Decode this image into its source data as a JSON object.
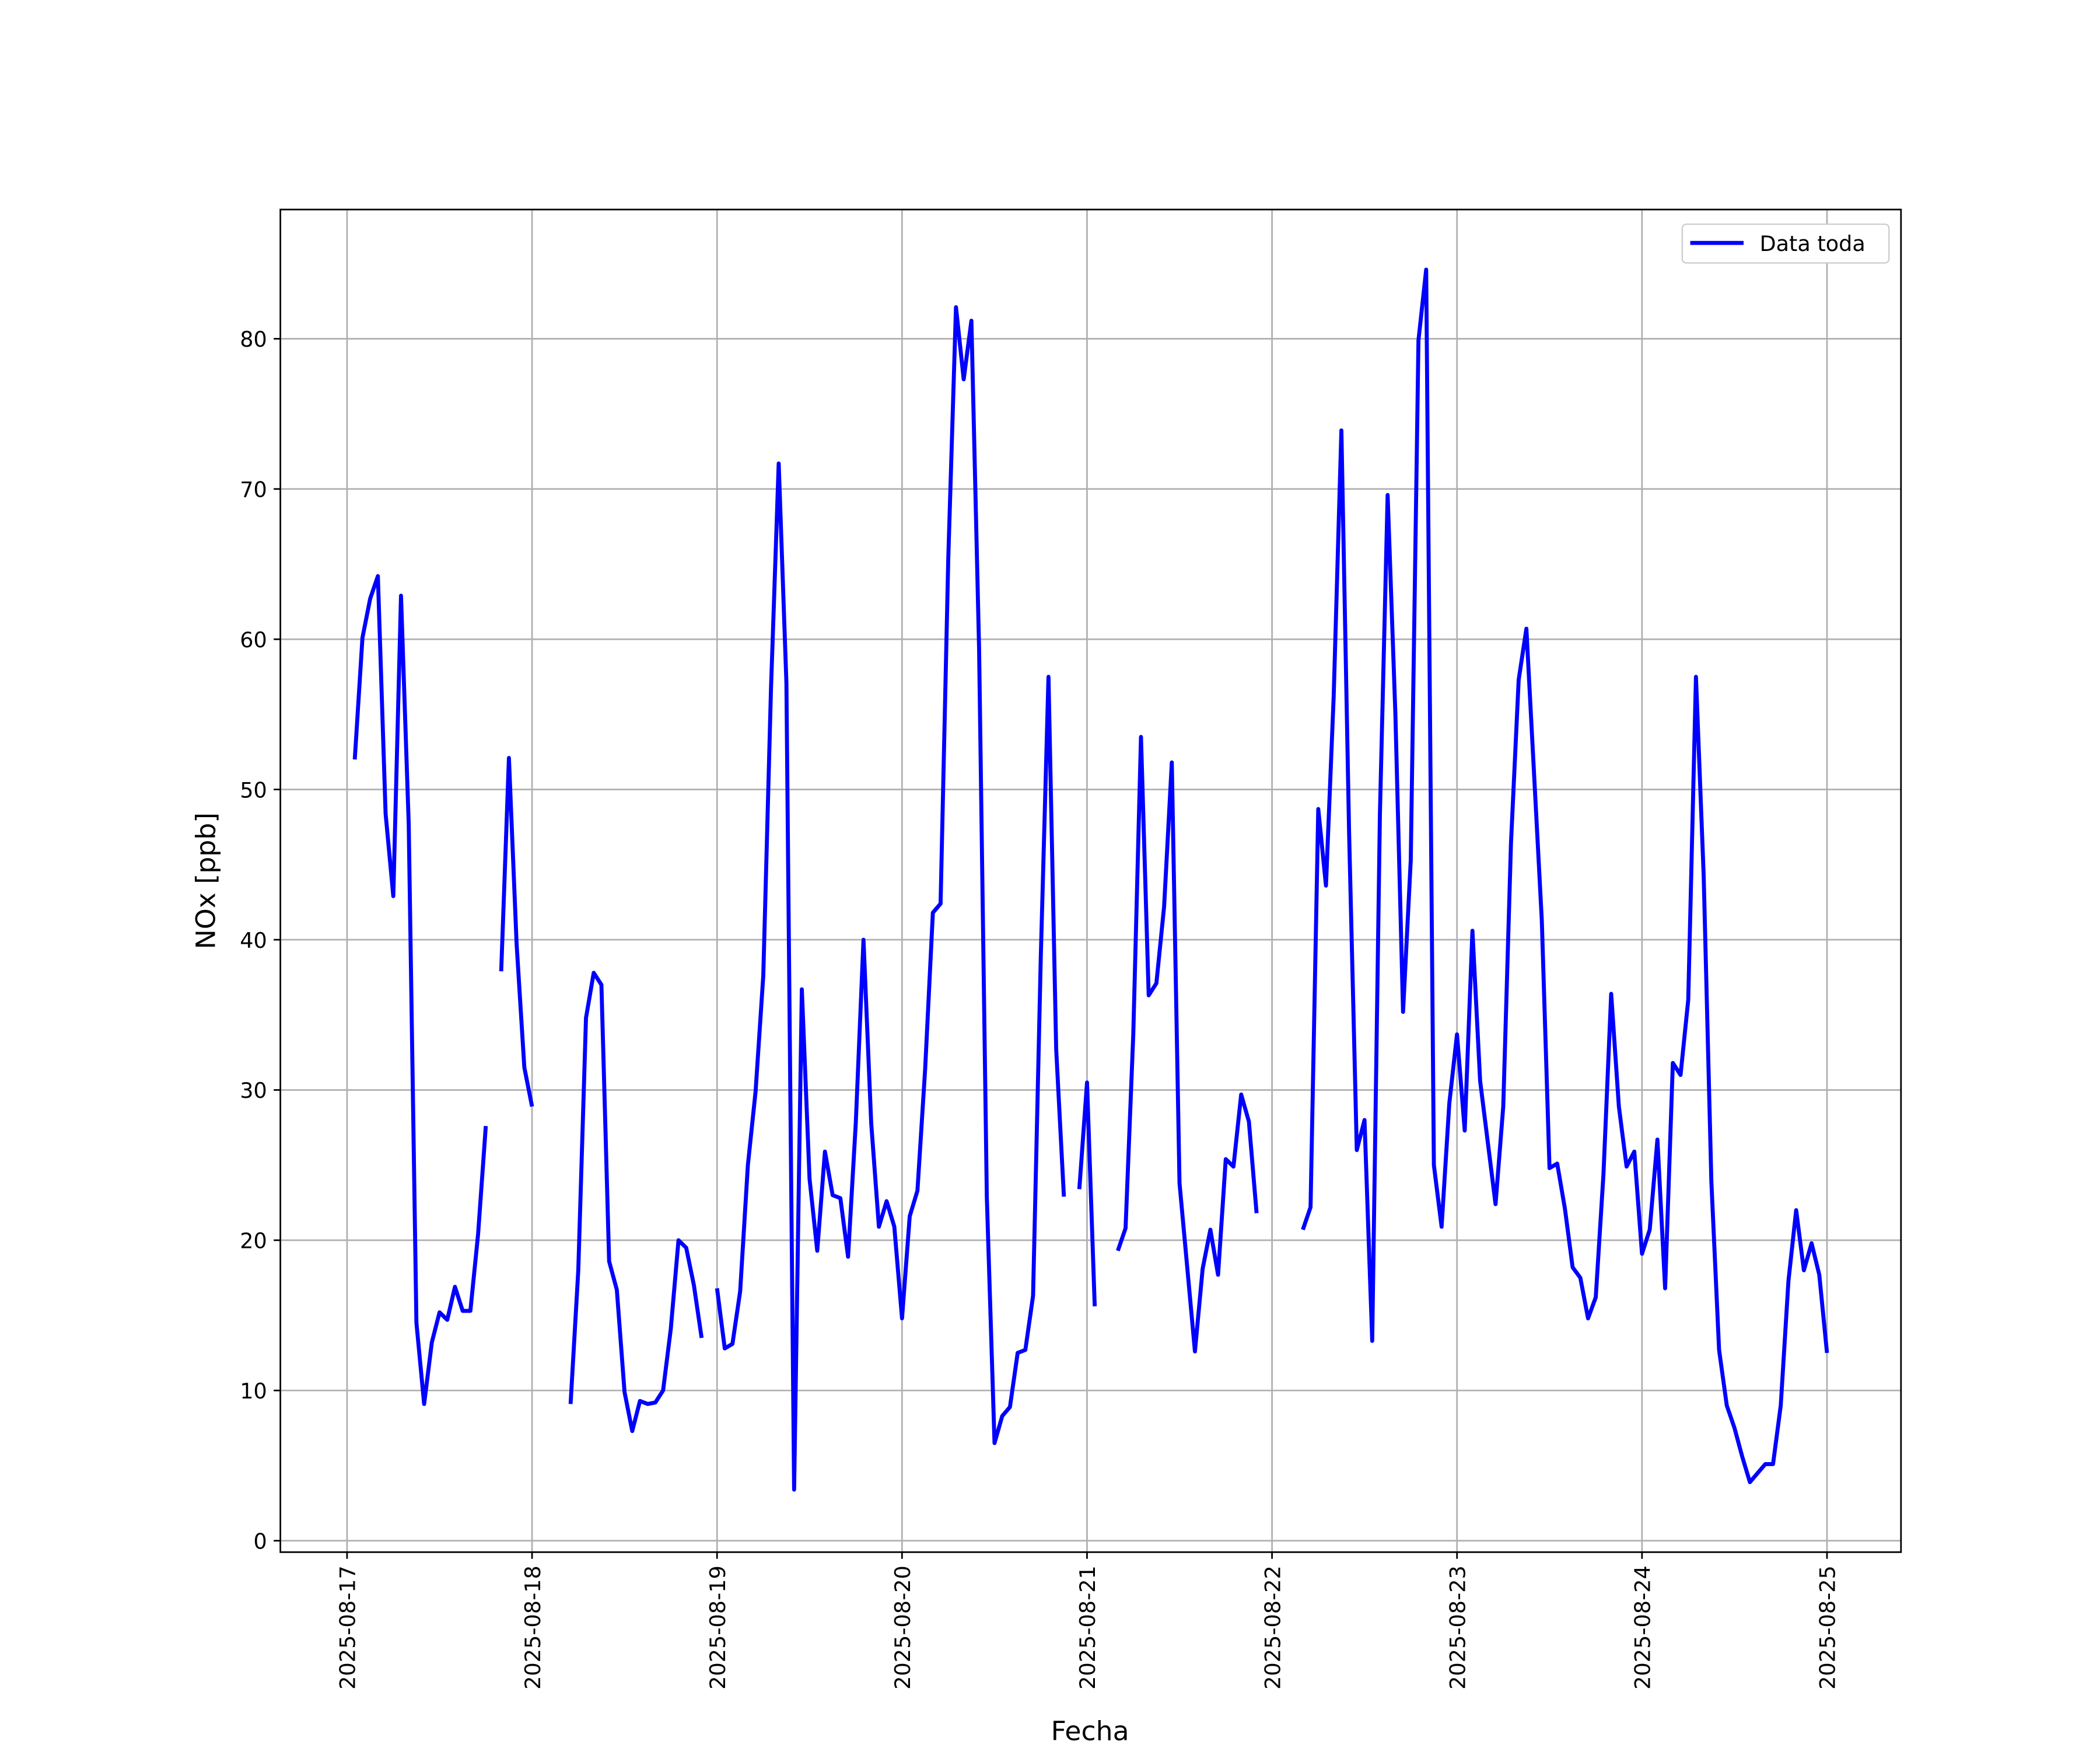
{
  "chart_data": {
    "type": "line",
    "xlabel": "Fecha",
    "ylabel": "NOx [ppb]",
    "xlim": [
      "2025-08-16 15:21",
      "2025-08-25 09:36"
    ],
    "xticks": [
      "2025-08-17",
      "2025-08-18",
      "2025-08-19",
      "2025-08-20",
      "2025-08-21",
      "2025-08-22",
      "2025-08-23",
      "2025-08-24",
      "2025-08-25"
    ],
    "ylim": [
      -0.76,
      88.6
    ],
    "yticks": [
      0,
      10,
      20,
      30,
      40,
      50,
      60,
      70,
      80
    ],
    "grid": true,
    "legend": "upper right",
    "x": [
      "2025-08-17 01:00",
      "2025-08-17 02:00",
      "2025-08-17 03:00",
      "2025-08-17 04:00",
      "2025-08-17 05:00",
      "2025-08-17 06:00",
      "2025-08-17 07:00",
      "2025-08-17 08:00",
      "2025-08-17 09:00",
      "2025-08-17 10:00",
      "2025-08-17 11:00",
      "2025-08-17 12:00",
      "2025-08-17 13:00",
      "2025-08-17 14:00",
      "2025-08-17 15:00",
      "2025-08-17 16:00",
      "2025-08-17 17:00",
      "2025-08-17 18:00",
      "2025-08-17 19:00",
      "2025-08-17 20:00",
      "2025-08-17 21:00",
      "2025-08-17 22:00",
      "2025-08-17 23:00",
      "2025-08-18 00:00",
      "2025-08-18 01:00",
      "2025-08-18 02:00",
      "2025-08-18 03:00",
      "2025-08-18 04:00",
      "2025-08-18 05:00",
      "2025-08-18 06:00",
      "2025-08-18 07:00",
      "2025-08-18 08:00",
      "2025-08-18 09:00",
      "2025-08-18 10:00",
      "2025-08-18 11:00",
      "2025-08-18 12:00",
      "2025-08-18 13:00",
      "2025-08-18 14:00",
      "2025-08-18 15:00",
      "2025-08-18 16:00",
      "2025-08-18 17:00",
      "2025-08-18 18:00",
      "2025-08-18 19:00",
      "2025-08-18 20:00",
      "2025-08-18 21:00",
      "2025-08-18 22:00",
      "2025-08-18 23:00",
      "2025-08-19 00:00",
      "2025-08-19 01:00",
      "2025-08-19 02:00",
      "2025-08-19 03:00",
      "2025-08-19 04:00",
      "2025-08-19 05:00",
      "2025-08-19 06:00",
      "2025-08-19 07:00",
      "2025-08-19 08:00",
      "2025-08-19 09:00",
      "2025-08-19 10:00",
      "2025-08-19 11:00",
      "2025-08-19 12:00",
      "2025-08-19 13:00",
      "2025-08-19 14:00",
      "2025-08-19 15:00",
      "2025-08-19 16:00",
      "2025-08-19 17:00",
      "2025-08-19 18:00",
      "2025-08-19 19:00",
      "2025-08-19 20:00",
      "2025-08-19 21:00",
      "2025-08-19 22:00",
      "2025-08-19 23:00",
      "2025-08-20 00:00",
      "2025-08-20 01:00",
      "2025-08-20 02:00",
      "2025-08-20 03:00",
      "2025-08-20 04:00",
      "2025-08-20 05:00",
      "2025-08-20 06:00",
      "2025-08-20 07:00",
      "2025-08-20 08:00",
      "2025-08-20 09:00",
      "2025-08-20 10:00",
      "2025-08-20 11:00",
      "2025-08-20 12:00",
      "2025-08-20 13:00",
      "2025-08-20 14:00",
      "2025-08-20 15:00",
      "2025-08-20 16:00",
      "2025-08-20 17:00",
      "2025-08-20 18:00",
      "2025-08-20 19:00",
      "2025-08-20 20:00",
      "2025-08-20 21:00",
      "2025-08-20 22:00",
      "2025-08-20 23:00",
      "2025-08-21 00:00",
      "2025-08-21 01:00",
      "2025-08-21 02:00",
      "2025-08-21 03:00",
      "2025-08-21 04:00",
      "2025-08-21 05:00",
      "2025-08-21 06:00",
      "2025-08-21 07:00",
      "2025-08-21 08:00",
      "2025-08-21 09:00",
      "2025-08-21 10:00",
      "2025-08-21 11:00",
      "2025-08-21 12:00",
      "2025-08-21 13:00",
      "2025-08-21 14:00",
      "2025-08-21 15:00",
      "2025-08-21 16:00",
      "2025-08-21 17:00",
      "2025-08-21 18:00",
      "2025-08-21 19:00",
      "2025-08-21 20:00",
      "2025-08-21 21:00",
      "2025-08-21 22:00",
      "2025-08-21 23:00",
      "2025-08-22 00:00",
      "2025-08-22 01:00",
      "2025-08-22 02:00",
      "2025-08-22 03:00",
      "2025-08-22 04:00",
      "2025-08-22 05:00",
      "2025-08-22 06:00",
      "2025-08-22 07:00",
      "2025-08-22 08:00",
      "2025-08-22 09:00",
      "2025-08-22 10:00",
      "2025-08-22 11:00",
      "2025-08-22 12:00",
      "2025-08-22 13:00",
      "2025-08-22 14:00",
      "2025-08-22 15:00",
      "2025-08-22 16:00",
      "2025-08-22 17:00",
      "2025-08-22 18:00",
      "2025-08-22 19:00",
      "2025-08-22 20:00",
      "2025-08-22 21:00",
      "2025-08-22 22:00",
      "2025-08-22 23:00",
      "2025-08-23 00:00",
      "2025-08-23 01:00",
      "2025-08-23 02:00",
      "2025-08-23 03:00",
      "2025-08-23 04:00",
      "2025-08-23 05:00",
      "2025-08-23 06:00",
      "2025-08-23 07:00",
      "2025-08-23 08:00",
      "2025-08-23 09:00",
      "2025-08-23 10:00",
      "2025-08-23 11:00",
      "2025-08-23 12:00",
      "2025-08-23 13:00",
      "2025-08-23 14:00",
      "2025-08-23 15:00",
      "2025-08-23 16:00",
      "2025-08-23 17:00",
      "2025-08-23 18:00",
      "2025-08-23 19:00",
      "2025-08-23 20:00",
      "2025-08-23 21:00",
      "2025-08-23 22:00",
      "2025-08-23 23:00",
      "2025-08-24 00:00",
      "2025-08-24 01:00",
      "2025-08-24 02:00",
      "2025-08-24 03:00",
      "2025-08-24 04:00",
      "2025-08-24 05:00",
      "2025-08-24 06:00",
      "2025-08-24 07:00",
      "2025-08-24 08:00",
      "2025-08-24 09:00",
      "2025-08-24 10:00",
      "2025-08-24 11:00",
      "2025-08-24 12:00",
      "2025-08-24 13:00",
      "2025-08-24 14:00",
      "2025-08-24 15:00",
      "2025-08-24 16:00",
      "2025-08-24 17:00",
      "2025-08-24 18:00",
      "2025-08-24 19:00",
      "2025-08-24 20:00",
      "2025-08-24 21:00",
      "2025-08-24 22:00",
      "2025-08-24 23:00",
      "2025-08-25 00:00"
    ],
    "series": [
      {
        "name": "Data toda",
        "color": "#0000ff",
        "values": [
          52.0,
          60.1,
          62.7,
          64.2,
          48.4,
          42.9,
          62.9,
          47.7,
          14.5,
          9.1,
          13.2,
          15.2,
          14.7,
          16.9,
          15.3,
          15.3,
          20.4,
          27.6,
          null,
          37.9,
          52.1,
          39.7,
          31.5,
          28.9,
          null,
          null,
          null,
          null,
          9.1,
          18.0,
          34.8,
          37.8,
          37.0,
          18.6,
          16.7,
          9.9,
          7.3,
          9.3,
          9.1,
          9.2,
          10.0,
          14.1,
          20.0,
          19.5,
          17.0,
          13.5,
          null,
          16.8,
          12.8,
          13.1,
          16.6,
          25.0,
          29.9,
          37.6,
          56.7,
          71.7,
          57.1,
          3.4,
          36.7,
          24.1,
          19.3,
          25.9,
          23.0,
          22.8,
          18.9,
          27.8,
          40.0,
          27.8,
          20.9,
          22.6,
          20.9,
          14.8,
          21.6,
          23.3,
          31.4,
          41.8,
          42.4,
          65.4,
          82.1,
          77.3,
          81.2,
          59.3,
          22.9,
          6.5,
          8.3,
          8.9,
          12.5,
          12.7,
          16.3,
          38.8,
          57.5,
          32.7,
          22.9,
          null,
          23.4,
          30.5,
          15.6,
          null,
          null,
          19.3,
          20.8,
          33.7,
          53.5,
          36.3,
          37.1,
          42.2,
          51.8,
          23.8,
          18.2,
          12.6,
          18.1,
          20.7,
          17.7,
          25.4,
          24.9,
          29.7,
          27.9,
          21.8,
          null,
          null,
          null,
          null,
          null,
          20.7,
          22.2,
          48.7,
          43.6,
          56.2,
          73.9,
          47.1,
          26.0,
          28.0,
          13.3,
          48.4,
          69.6,
          55.1,
          35.2,
          45.3,
          79.9,
          84.6,
          25.0,
          20.9,
          29.1,
          33.7,
          27.3,
          40.6,
          30.6,
          26.5,
          22.4,
          28.9,
          46.4,
          57.3,
          60.7,
          51.0,
          41.3,
          24.8,
          25.1,
          22.1,
          18.2,
          17.5,
          14.8,
          16.2,
          24.4,
          36.4,
          28.9,
          24.9,
          25.9,
          19.1,
          20.7,
          26.7,
          16.8,
          31.8,
          31.0,
          36.0,
          57.5,
          44.3,
          23.9,
          12.7,
          9.0,
          7.5,
          5.6,
          3.9,
          4.5,
          5.1,
          5.1,
          9.0,
          17.3,
          22.0,
          18.0,
          19.8,
          17.7,
          12.5
        ]
      }
    ]
  }
}
